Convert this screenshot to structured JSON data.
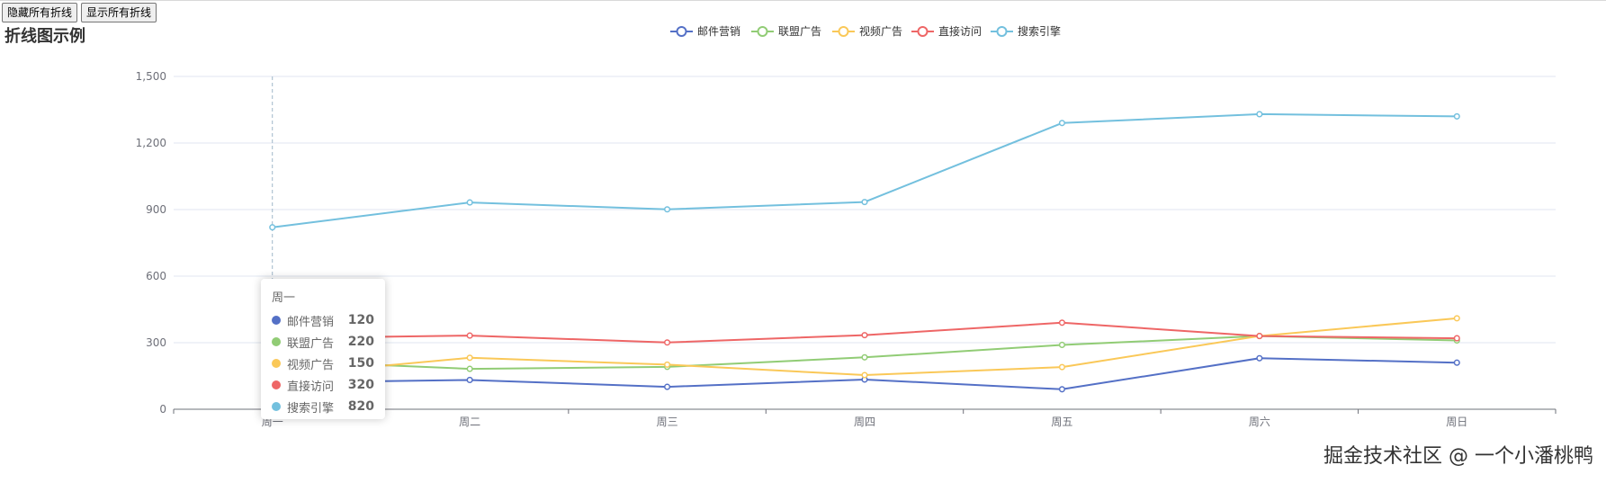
{
  "controls": {
    "hide_all_label": "隐藏所有折线",
    "show_all_label": "显示所有折线"
  },
  "title": "折线图示例",
  "watermark": "掘金技术社区 @ 一个小潘桃鸭",
  "tooltip": {
    "category": "周一",
    "items": [
      {
        "name": "邮件营销",
        "value": "120",
        "color": "#5470c6"
      },
      {
        "name": "联盟广告",
        "value": "220",
        "color": "#91cc75"
      },
      {
        "name": "视频广告",
        "value": "150",
        "color": "#fac858"
      },
      {
        "name": "直接访问",
        "value": "320",
        "color": "#ee6666"
      },
      {
        "name": "搜索引擎",
        "value": "820",
        "color": "#73c0de"
      }
    ]
  },
  "chart_data": {
    "type": "line",
    "title": "折线图示例",
    "categories": [
      "周一",
      "周二",
      "周三",
      "周四",
      "周五",
      "周六",
      "周日"
    ],
    "ylim": [
      0,
      1500
    ],
    "yticks": [
      0,
      300,
      600,
      900,
      1200,
      1500
    ],
    "ytick_labels": [
      "0",
      "300",
      "600",
      "900",
      "1,200",
      "1,500"
    ],
    "grid": true,
    "legend_position": "top-center",
    "series": [
      {
        "name": "邮件营销",
        "color": "#5470c6",
        "values": [
          120,
          132,
          101,
          134,
          90,
          230,
          210
        ]
      },
      {
        "name": "联盟广告",
        "color": "#91cc75",
        "values": [
          220,
          182,
          191,
          234,
          290,
          330,
          310
        ]
      },
      {
        "name": "视频广告",
        "color": "#fac858",
        "values": [
          150,
          232,
          201,
          154,
          190,
          330,
          410
        ]
      },
      {
        "name": "直接访问",
        "color": "#ee6666",
        "values": [
          320,
          332,
          301,
          334,
          390,
          330,
          320
        ]
      },
      {
        "name": "搜索引擎",
        "color": "#73c0de",
        "values": [
          820,
          932,
          901,
          934,
          1290,
          1330,
          1320
        ]
      }
    ]
  }
}
